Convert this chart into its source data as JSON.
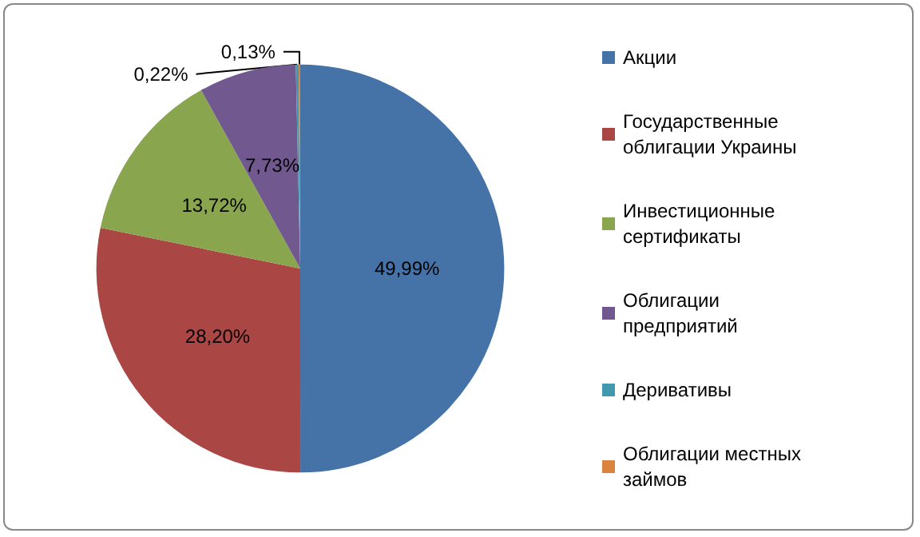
{
  "chart_data": {
    "type": "pie",
    "categories": [
      "Акции",
      "Государственные облигации Украины",
      "Инвестиционные сертификаты",
      "Облигации предприятий",
      "Деривативы",
      "Облигации местных займов"
    ],
    "values": [
      49.99,
      28.2,
      13.72,
      7.73,
      0.22,
      0.13
    ],
    "colors": [
      "#4572a7",
      "#aa4643",
      "#89a54e",
      "#71588f",
      "#4198af",
      "#db843d"
    ],
    "value_labels": [
      "49,99%",
      "28,20%",
      "13,72%",
      "7,73%",
      "0,22%",
      "0,13%"
    ],
    "legend": "right"
  }
}
